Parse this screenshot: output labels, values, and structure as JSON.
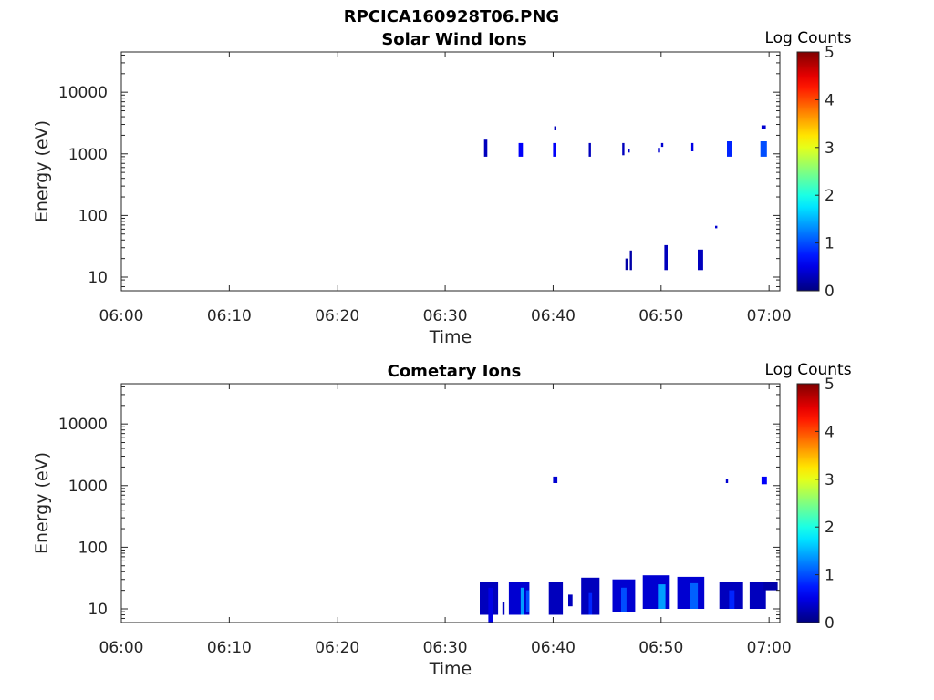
{
  "figure_title": "RPCICA160928T06.PNG",
  "chart_data": [
    {
      "type": "heatmap",
      "title": "Solar Wind Ions",
      "xlabel": "Time",
      "ylabel": "Energy (eV)",
      "x_ticks": [
        "06:00",
        "06:10",
        "06:20",
        "06:30",
        "06:40",
        "06:50",
        "07:00"
      ],
      "xlim_minutes": [
        0,
        61
      ],
      "y_scale": "log",
      "y_ticks": [
        10,
        100,
        1000,
        10000
      ],
      "ylim": [
        6,
        45000
      ],
      "colorbar": {
        "label": "Log Counts",
        "min": 0,
        "max": 5,
        "ticks": [
          0,
          1,
          2,
          3,
          4,
          5
        ],
        "colormap": "jet"
      },
      "cells": [
        {
          "t": [
            33.6,
            33.9
          ],
          "e": [
            900,
            1700
          ],
          "v": 0.3
        },
        {
          "t": [
            36.8,
            37.2
          ],
          "e": [
            900,
            1500
          ],
          "v": 0.6
        },
        {
          "t": [
            40.0,
            40.3
          ],
          "e": [
            900,
            1500
          ],
          "v": 0.6
        },
        {
          "t": [
            40.1,
            40.3
          ],
          "e": [
            2400,
            2800
          ],
          "v": 0.3
        },
        {
          "t": [
            43.3,
            43.5
          ],
          "e": [
            900,
            1500
          ],
          "v": 0.3
        },
        {
          "t": [
            46.4,
            46.6
          ],
          "e": [
            950,
            1500
          ],
          "v": 0.3
        },
        {
          "t": [
            46.9,
            47.1
          ],
          "e": [
            1050,
            1200
          ],
          "v": 0.4
        },
        {
          "t": [
            49.7,
            49.9
          ],
          "e": [
            1050,
            1250
          ],
          "v": 0.4
        },
        {
          "t": [
            50.0,
            50.2
          ],
          "e": [
            1300,
            1500
          ],
          "v": 0.4
        },
        {
          "t": [
            52.8,
            53.0
          ],
          "e": [
            1100,
            1500
          ],
          "v": 0.5
        },
        {
          "t": [
            56.1,
            56.6
          ],
          "e": [
            900,
            1600
          ],
          "v": 0.8
        },
        {
          "t": [
            59.2,
            59.8
          ],
          "e": [
            900,
            1600
          ],
          "v": 1.0
        },
        {
          "t": [
            59.3,
            59.7
          ],
          "e": [
            2500,
            2900
          ],
          "v": 0.4
        },
        {
          "t": [
            55.0,
            55.2
          ],
          "e": [
            62,
            68
          ],
          "v": 0.4
        },
        {
          "t": [
            46.7,
            46.9
          ],
          "e": [
            13,
            20
          ],
          "v": 0.2
        },
        {
          "t": [
            47.1,
            47.3
          ],
          "e": [
            13,
            27
          ],
          "v": 0.2
        },
        {
          "t": [
            50.3,
            50.6
          ],
          "e": [
            13,
            33
          ],
          "v": 0.3
        },
        {
          "t": [
            53.4,
            53.9
          ],
          "e": [
            13,
            28
          ],
          "v": 0.3
        }
      ]
    },
    {
      "type": "heatmap",
      "title": "Cometary Ions",
      "xlabel": "Time",
      "ylabel": "Energy (eV)",
      "x_ticks": [
        "06:00",
        "06:10",
        "06:20",
        "06:30",
        "06:40",
        "06:50",
        "07:00"
      ],
      "xlim_minutes": [
        0,
        61
      ],
      "y_scale": "log",
      "y_ticks": [
        10,
        100,
        1000,
        10000
      ],
      "ylim": [
        6,
        45000
      ],
      "colorbar": {
        "label": "Log Counts",
        "min": 0,
        "max": 5,
        "ticks": [
          0,
          1,
          2,
          3,
          4,
          5
        ],
        "colormap": "jet"
      },
      "cells": [
        {
          "t": [
            40.0,
            40.4
          ],
          "e": [
            1100,
            1400
          ],
          "v": 0.4
        },
        {
          "t": [
            56.0,
            56.2
          ],
          "e": [
            1100,
            1300
          ],
          "v": 0.4
        },
        {
          "t": [
            59.3,
            59.8
          ],
          "e": [
            1050,
            1400
          ],
          "v": 0.6
        },
        {
          "t": [
            33.2,
            34.9
          ],
          "e": [
            8,
            27
          ],
          "v": 0.3
        },
        {
          "t": [
            34.0,
            34.4
          ],
          "e": [
            6,
            22
          ],
          "v": 0.5
        },
        {
          "t": [
            35.3,
            35.5
          ],
          "e": [
            8,
            13
          ],
          "v": 0.3
        },
        {
          "t": [
            35.9,
            37.8
          ],
          "e": [
            8,
            27
          ],
          "v": 0.4
        },
        {
          "t": [
            37.0,
            37.3
          ],
          "e": [
            8,
            22
          ],
          "v": 1.4
        },
        {
          "t": [
            37.5,
            37.8
          ],
          "e": [
            9,
            20
          ],
          "v": 1.0
        },
        {
          "t": [
            39.6,
            40.9
          ],
          "e": [
            8,
            27
          ],
          "v": 0.3
        },
        {
          "t": [
            41.4,
            41.8
          ],
          "e": [
            11,
            17
          ],
          "v": 0.3
        },
        {
          "t": [
            42.6,
            44.3
          ],
          "e": [
            8,
            32
          ],
          "v": 0.3
        },
        {
          "t": [
            43.3,
            43.6
          ],
          "e": [
            8,
            18
          ],
          "v": 0.8
        },
        {
          "t": [
            45.5,
            47.6
          ],
          "e": [
            9,
            30
          ],
          "v": 0.4
        },
        {
          "t": [
            46.3,
            46.8
          ],
          "e": [
            9,
            22
          ],
          "v": 1.0
        },
        {
          "t": [
            48.3,
            50.8
          ],
          "e": [
            10,
            35
          ],
          "v": 0.4
        },
        {
          "t": [
            49.7,
            50.4
          ],
          "e": [
            10,
            25
          ],
          "v": 1.4
        },
        {
          "t": [
            51.5,
            54.0
          ],
          "e": [
            10,
            33
          ],
          "v": 0.4
        },
        {
          "t": [
            52.7,
            53.4
          ],
          "e": [
            10,
            26
          ],
          "v": 1.1
        },
        {
          "t": [
            55.4,
            57.6
          ],
          "e": [
            10,
            27
          ],
          "v": 0.3
        },
        {
          "t": [
            56.3,
            56.8
          ],
          "e": [
            10,
            20
          ],
          "v": 0.8
        },
        {
          "t": [
            58.2,
            59.7
          ],
          "e": [
            10,
            27
          ],
          "v": 0.3
        },
        {
          "t": [
            59.5,
            60.8
          ],
          "e": [
            20,
            27
          ],
          "v": 0.2
        }
      ]
    }
  ]
}
